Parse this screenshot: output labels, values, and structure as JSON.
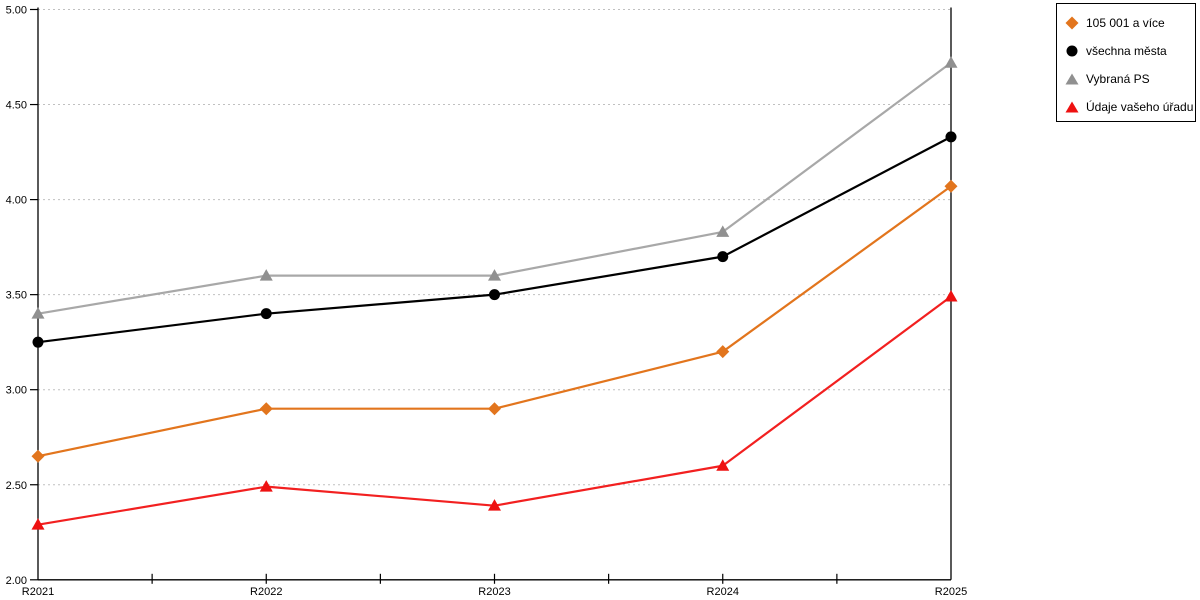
{
  "chart_data": {
    "type": "line",
    "title": "",
    "xlabel": "",
    "ylabel": "",
    "categories": [
      "R2021",
      "R2022",
      "R2023",
      "R2024",
      "R2025"
    ],
    "series": [
      {
        "name": "105 001 a více",
        "marker": "diamond",
        "color": "#E2751D",
        "values": [
          2.65,
          2.9,
          2.9,
          3.2,
          4.07
        ]
      },
      {
        "name": "všechna města",
        "marker": "circle",
        "color": "#000000",
        "values": [
          3.25,
          3.4,
          3.5,
          3.7,
          4.33
        ]
      },
      {
        "name": "Vybraná PS",
        "marker": "triangle",
        "color": "#909090",
        "line_color": "#A8A8A8",
        "values": [
          3.4,
          3.6,
          3.6,
          3.83,
          4.72
        ]
      },
      {
        "name": "Údaje vašeho úřadu",
        "marker": "triangle",
        "color": "#EE1111",
        "line_color": "#F22020",
        "values": [
          2.29,
          2.49,
          2.39,
          2.6,
          3.49
        ]
      }
    ],
    "ylim": [
      2.0,
      5.0
    ],
    "ytick_step": 0.5,
    "ytick_labels": [
      "2.00",
      "2.50",
      "3.00",
      "3.50",
      "4.00",
      "4.50",
      "5.00"
    ],
    "grid": "horizontal-dotted",
    "legend_position": "top-right"
  },
  "colors": {
    "background": "#FFFFFF",
    "axis": "#000000",
    "gridline": "#C0C0C0",
    "legend_border": "#000000"
  }
}
